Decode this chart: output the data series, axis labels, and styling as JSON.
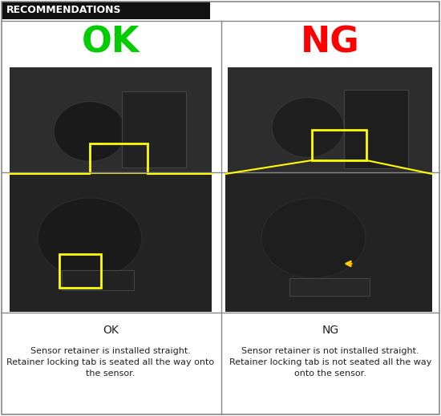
{
  "title": "Recommendations",
  "ok_label": "OK",
  "ng_label": "NG",
  "ok_color": "#00cc00",
  "ng_color": "#ff0000",
  "header_bg": "#111111",
  "header_text_color": "#ffffff",
  "border_color": "#aaaaaa",
  "ok_desc_title": "OK",
  "ng_desc_title": "NG",
  "ok_desc_text": "Sensor retainer is installed straight.\nRetainer locking tab is seated all the way onto\nthe sensor.",
  "ng_desc_text": "Sensor retainer is not installed straight.\nRetainer locking tab is not seated all the way\nonto the sensor.",
  "yellow": "#ffff00",
  "yellow_arrow": "#ffcc00",
  "fig_width": 5.5,
  "fig_height": 5.19,
  "dpi": 100
}
